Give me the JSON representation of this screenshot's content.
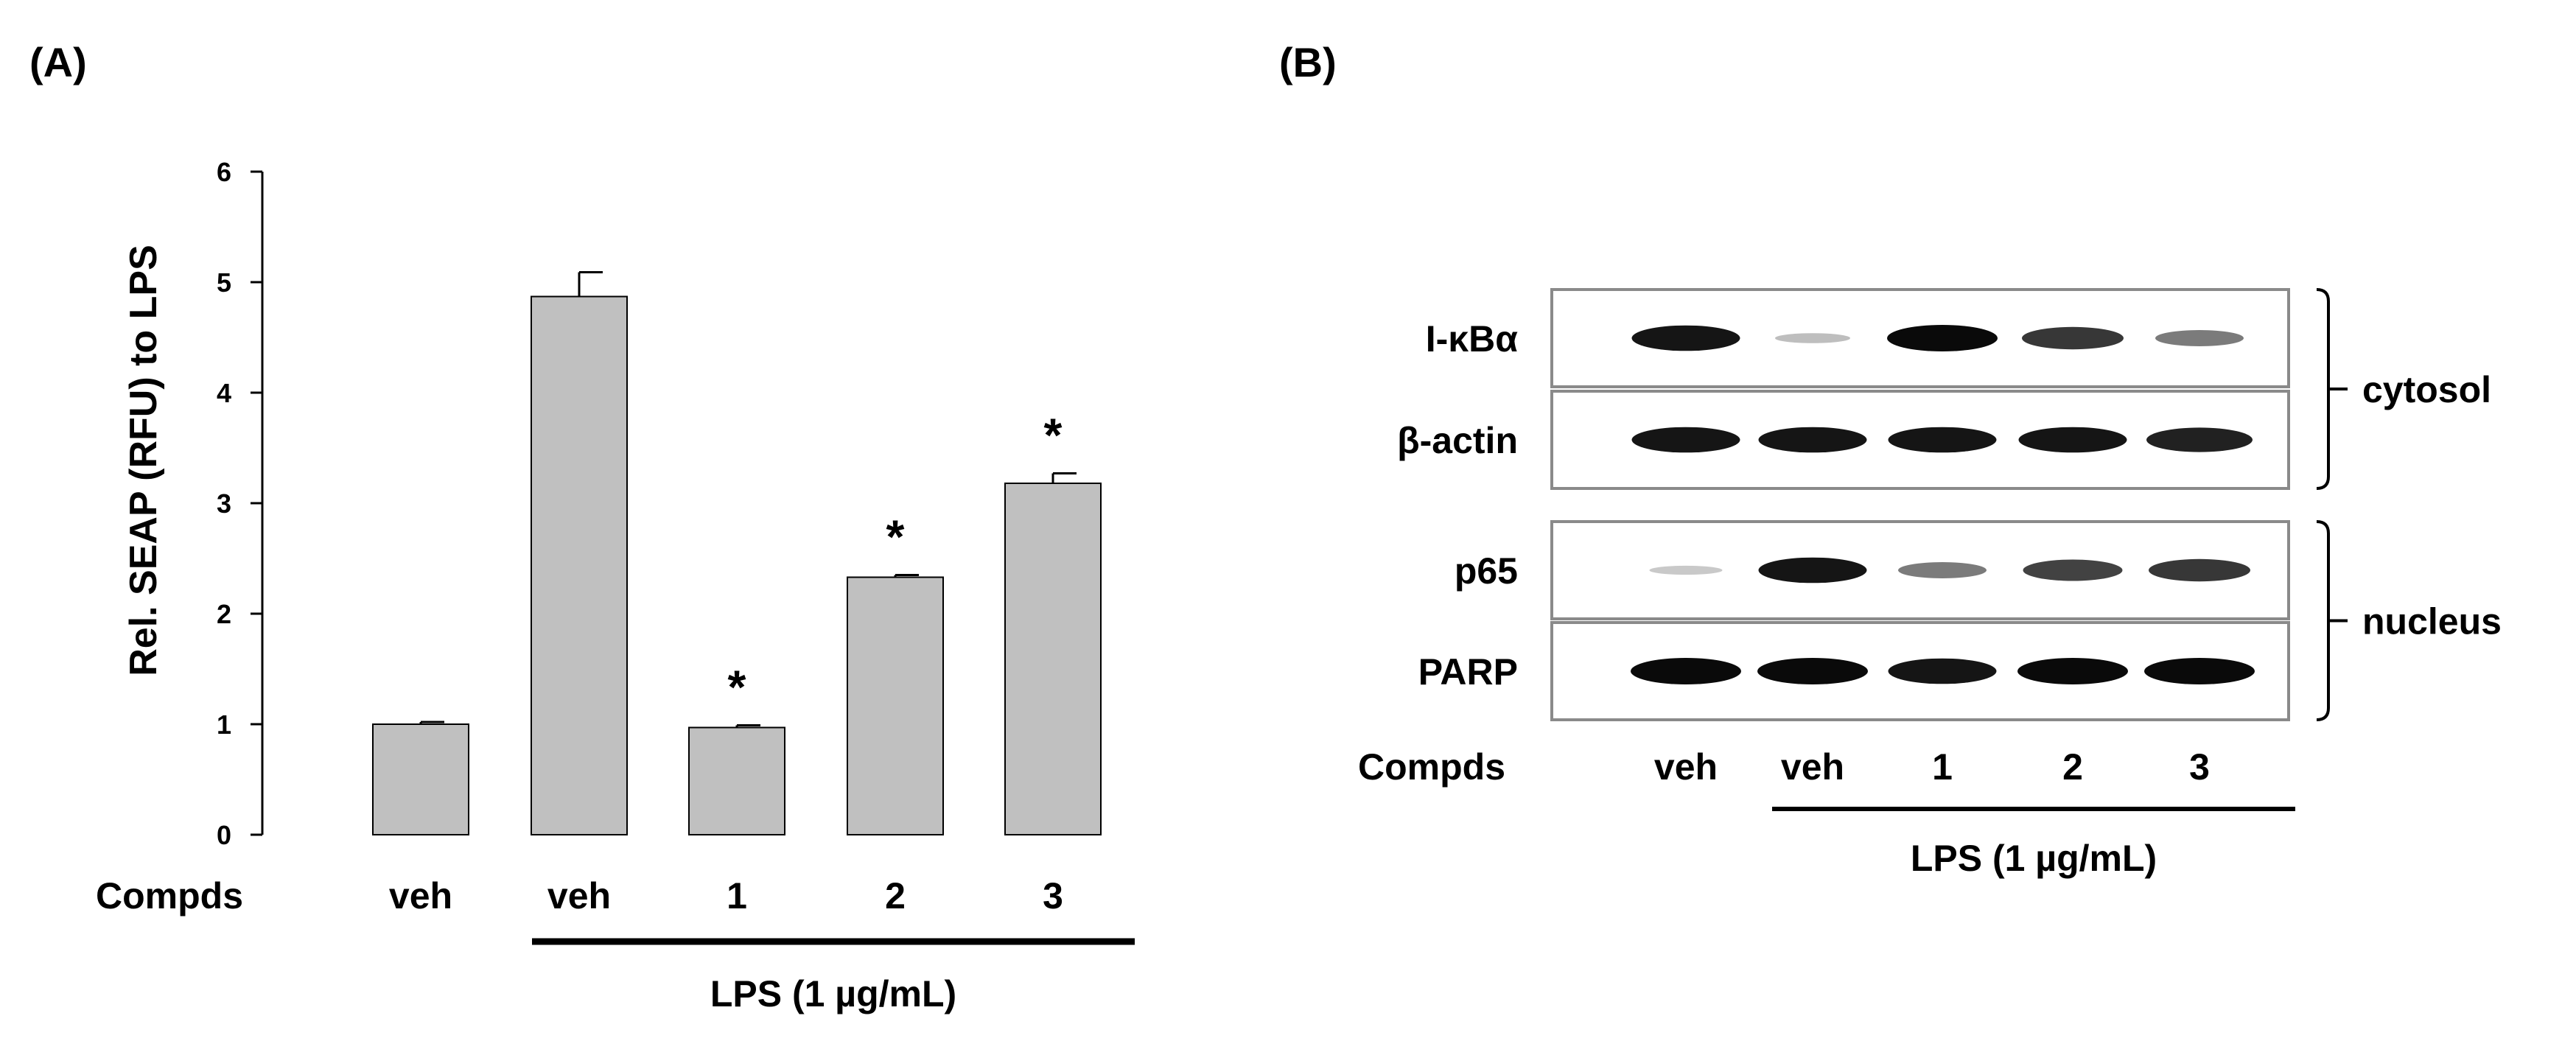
{
  "panel_a": {
    "label": "(A)",
    "compds_label": "Compds",
    "lps_label": "LPS (1 µg/mL)"
  },
  "panel_b": {
    "label": "(B)",
    "compds_label": "Compds",
    "lps_label": "LPS (1 µg/mL)",
    "lanes": [
      "veh",
      "veh",
      "1",
      "2",
      "3"
    ],
    "blots": [
      {
        "name": "I-κBα",
        "intensities": [
          0.95,
          0.2,
          1.0,
          0.8,
          0.5
        ]
      },
      {
        "name": "β-actin",
        "intensities": [
          0.95,
          0.95,
          0.95,
          0.95,
          0.9
        ]
      },
      {
        "name": "p65",
        "intensities": [
          0.15,
          0.95,
          0.5,
          0.75,
          0.8
        ]
      },
      {
        "name": "PARP",
        "intensities": [
          1.0,
          1.0,
          0.95,
          1.0,
          1.0
        ]
      }
    ],
    "groups": [
      {
        "label": "cytosol",
        "blots": [
          0,
          1
        ]
      },
      {
        "label": "nucleus",
        "blots": [
          2,
          3
        ]
      }
    ]
  },
  "chart_data": {
    "type": "bar",
    "categories": [
      "veh",
      "veh",
      "1",
      "2",
      "3"
    ],
    "values": [
      1.0,
      4.87,
      0.97,
      2.33,
      3.18
    ],
    "errors": [
      0.02,
      0.22,
      0.02,
      0.02,
      0.09
    ],
    "significance": [
      "",
      "",
      "*",
      "*",
      "*"
    ],
    "ylabel": "Rel. SEAP (RFU) to LPS",
    "ylim": [
      0,
      6
    ],
    "yticks": [
      0,
      1,
      2,
      3,
      4,
      5,
      6
    ],
    "bar_color": "#c0c0c0"
  }
}
